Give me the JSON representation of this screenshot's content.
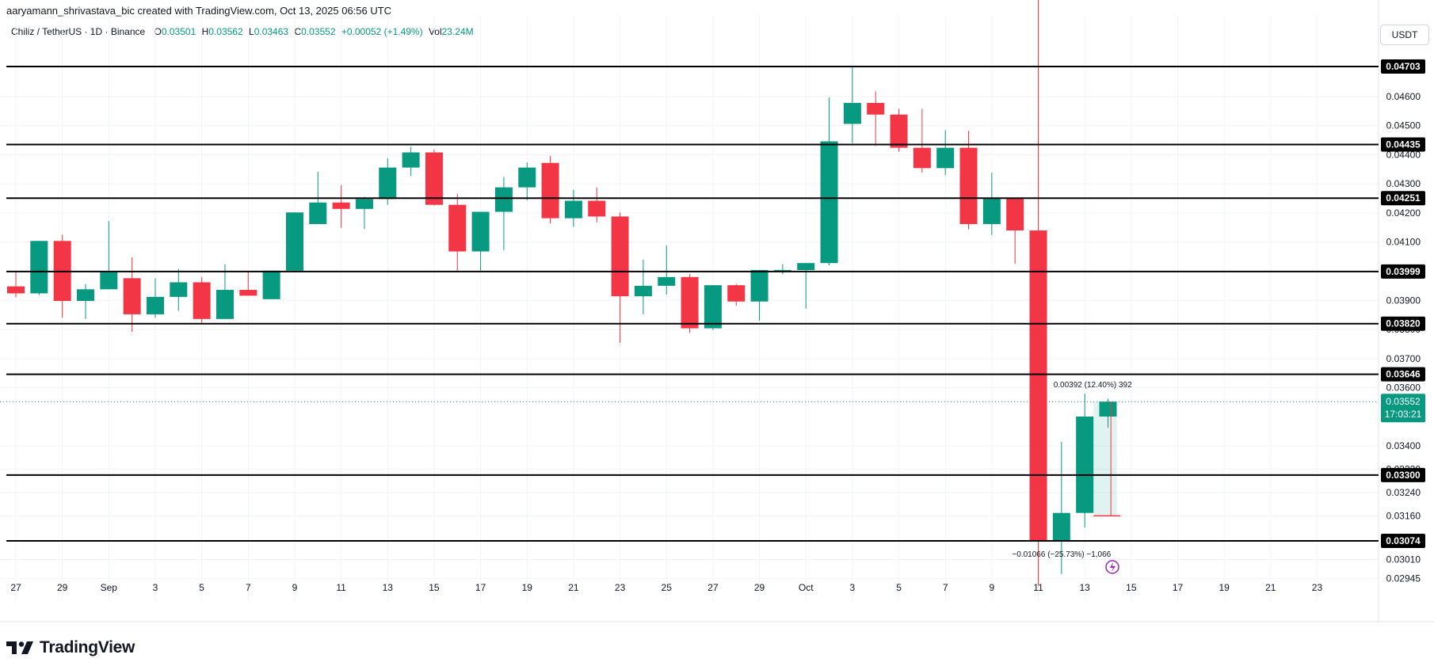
{
  "header": {
    "credit": "aaryamann_shrivastava_bic created with TradingView.com, Oct 13, 2025 06:56 UTC"
  },
  "legend": {
    "symbol": "Chiliz / TetherUS · 1D · Binance",
    "open_label": "O",
    "open": "0.03501",
    "high_label": "H",
    "high": "0.03562",
    "low_label": "L",
    "low": "0.03463",
    "close_label": "C",
    "close": "0.03552",
    "change": "+0.00052 (+1.49%)",
    "vol_label": "Vol",
    "vol": "23.24M"
  },
  "currency_button": "USDT",
  "brand": {
    "name": "TradingView",
    "logo_icon": "tradingview-logo-icon"
  },
  "colors": {
    "up": "#089981",
    "down": "#f23645",
    "line": "#000000",
    "grid": "#f0f3fa"
  },
  "chart_data": {
    "type": "candlestick",
    "title": "",
    "price_axis_labels": [
      "0.04600",
      "0.04500",
      "0.04400",
      "0.04300",
      "0.04200",
      "0.04100",
      "0.03900",
      "0.03800",
      "0.03700",
      "0.03600",
      "0.03400",
      "0.03320",
      "0.03240",
      "0.03160",
      "0.03010",
      "0.02945"
    ],
    "time_axis_labels": [
      "27",
      "29",
      "Sep",
      "3",
      "5",
      "7",
      "9",
      "11",
      "13",
      "15",
      "17",
      "19",
      "21",
      "23",
      "25",
      "27",
      "29",
      "Oct",
      "3",
      "5",
      "7",
      "9",
      "11",
      "13",
      "15",
      "17",
      "19",
      "21",
      "23"
    ],
    "horizontal_lines": [
      "0.04703",
      "0.04435",
      "0.04251",
      "0.03999",
      "0.03820",
      "0.03646",
      "0.03300",
      "0.03074"
    ],
    "last_price": {
      "value": "0.03552",
      "countdown": "17:03:21"
    },
    "measure_up": {
      "text": "0.00392 (12.40%) 392",
      "from": 0.0316,
      "to": 0.03552
    },
    "measure_down": {
      "text": "−0.01066 (−25.73%) −1,066"
    },
    "candles": [
      {
        "o": 0.03948,
        "h": 0.04,
        "l": 0.0391,
        "c": 0.03924
      },
      {
        "o": 0.03924,
        "h": 0.04104,
        "l": 0.03918,
        "c": 0.04104
      },
      {
        "o": 0.04104,
        "h": 0.04125,
        "l": 0.0384,
        "c": 0.03898
      },
      {
        "o": 0.03898,
        "h": 0.03956,
        "l": 0.03836,
        "c": 0.03938
      },
      {
        "o": 0.03938,
        "h": 0.04172,
        "l": 0.03938,
        "c": 0.03996
      },
      {
        "o": 0.03976,
        "h": 0.04048,
        "l": 0.03792,
        "c": 0.03852
      },
      {
        "o": 0.03852,
        "h": 0.03976,
        "l": 0.0384,
        "c": 0.03912
      },
      {
        "o": 0.03912,
        "h": 0.04008,
        "l": 0.03864,
        "c": 0.03962
      },
      {
        "o": 0.03962,
        "h": 0.0398,
        "l": 0.03822,
        "c": 0.03836
      },
      {
        "o": 0.03836,
        "h": 0.04024,
        "l": 0.03836,
        "c": 0.03936
      },
      {
        "o": 0.03936,
        "h": 0.04,
        "l": 0.03916,
        "c": 0.03916
      },
      {
        "o": 0.03904,
        "h": 0.04,
        "l": 0.03904,
        "c": 0.04002
      },
      {
        "o": 0.04002,
        "h": 0.04202,
        "l": 0.04002,
        "c": 0.04202
      },
      {
        "o": 0.04162,
        "h": 0.04342,
        "l": 0.04162,
        "c": 0.04236
      },
      {
        "o": 0.04236,
        "h": 0.04296,
        "l": 0.04149,
        "c": 0.04214
      },
      {
        "o": 0.04214,
        "h": 0.04256,
        "l": 0.04145,
        "c": 0.04248
      },
      {
        "o": 0.04248,
        "h": 0.04388,
        "l": 0.04228,
        "c": 0.04356
      },
      {
        "o": 0.04356,
        "h": 0.04428,
        "l": 0.04328,
        "c": 0.04408
      },
      {
        "o": 0.04408,
        "h": 0.04418,
        "l": 0.04226,
        "c": 0.04228
      },
      {
        "o": 0.04228,
        "h": 0.04266,
        "l": 0.03998,
        "c": 0.04068
      },
      {
        "o": 0.04068,
        "h": 0.04196,
        "l": 0.04002,
        "c": 0.04204
      },
      {
        "o": 0.04204,
        "h": 0.04324,
        "l": 0.04072,
        "c": 0.04288
      },
      {
        "o": 0.04288,
        "h": 0.04374,
        "l": 0.04244,
        "c": 0.04356
      },
      {
        "o": 0.04372,
        "h": 0.04396,
        "l": 0.04164,
        "c": 0.04182
      },
      {
        "o": 0.04182,
        "h": 0.0428,
        "l": 0.04152,
        "c": 0.04242
      },
      {
        "o": 0.04242,
        "h": 0.04288,
        "l": 0.04168,
        "c": 0.04188
      },
      {
        "o": 0.04188,
        "h": 0.04202,
        "l": 0.03754,
        "c": 0.03914
      },
      {
        "o": 0.03914,
        "h": 0.0404,
        "l": 0.03852,
        "c": 0.0395
      },
      {
        "o": 0.0395,
        "h": 0.04088,
        "l": 0.0392,
        "c": 0.0398
      },
      {
        "o": 0.0398,
        "h": 0.0399,
        "l": 0.03788,
        "c": 0.03804
      },
      {
        "o": 0.03804,
        "h": 0.03952,
        "l": 0.03798,
        "c": 0.03952
      },
      {
        "o": 0.03952,
        "h": 0.03956,
        "l": 0.03882,
        "c": 0.03896
      },
      {
        "o": 0.03896,
        "h": 0.04004,
        "l": 0.0383,
        "c": 0.04004
      },
      {
        "o": 0.04004,
        "h": 0.04024,
        "l": 0.0399,
        "c": 0.04004
      },
      {
        "o": 0.04004,
        "h": 0.04028,
        "l": 0.03872,
        "c": 0.04028
      },
      {
        "o": 0.04028,
        "h": 0.04597,
        "l": 0.0402,
        "c": 0.04446
      },
      {
        "o": 0.04506,
        "h": 0.04702,
        "l": 0.0444,
        "c": 0.04578
      },
      {
        "o": 0.04578,
        "h": 0.04618,
        "l": 0.0443,
        "c": 0.04538
      },
      {
        "o": 0.04538,
        "h": 0.04558,
        "l": 0.0441,
        "c": 0.04424
      },
      {
        "o": 0.04424,
        "h": 0.04558,
        "l": 0.04338,
        "c": 0.04354
      },
      {
        "o": 0.04354,
        "h": 0.04484,
        "l": 0.0433,
        "c": 0.04424
      },
      {
        "o": 0.04424,
        "h": 0.04482,
        "l": 0.04144,
        "c": 0.04162
      },
      {
        "o": 0.04162,
        "h": 0.04338,
        "l": 0.04124,
        "c": 0.0425
      },
      {
        "o": 0.0425,
        "h": 0.0425,
        "l": 0.04026,
        "c": 0.0414
      },
      {
        "o": 0.0414,
        "h": 0.0494,
        "l": 0.0292,
        "c": 0.03074
      },
      {
        "o": 0.03074,
        "h": 0.03414,
        "l": 0.0296,
        "c": 0.0317
      },
      {
        "o": 0.0317,
        "h": 0.0358,
        "l": 0.0312,
        "c": 0.03501
      },
      {
        "o": 0.03501,
        "h": 0.03562,
        "l": 0.03463,
        "c": 0.03552
      }
    ]
  }
}
